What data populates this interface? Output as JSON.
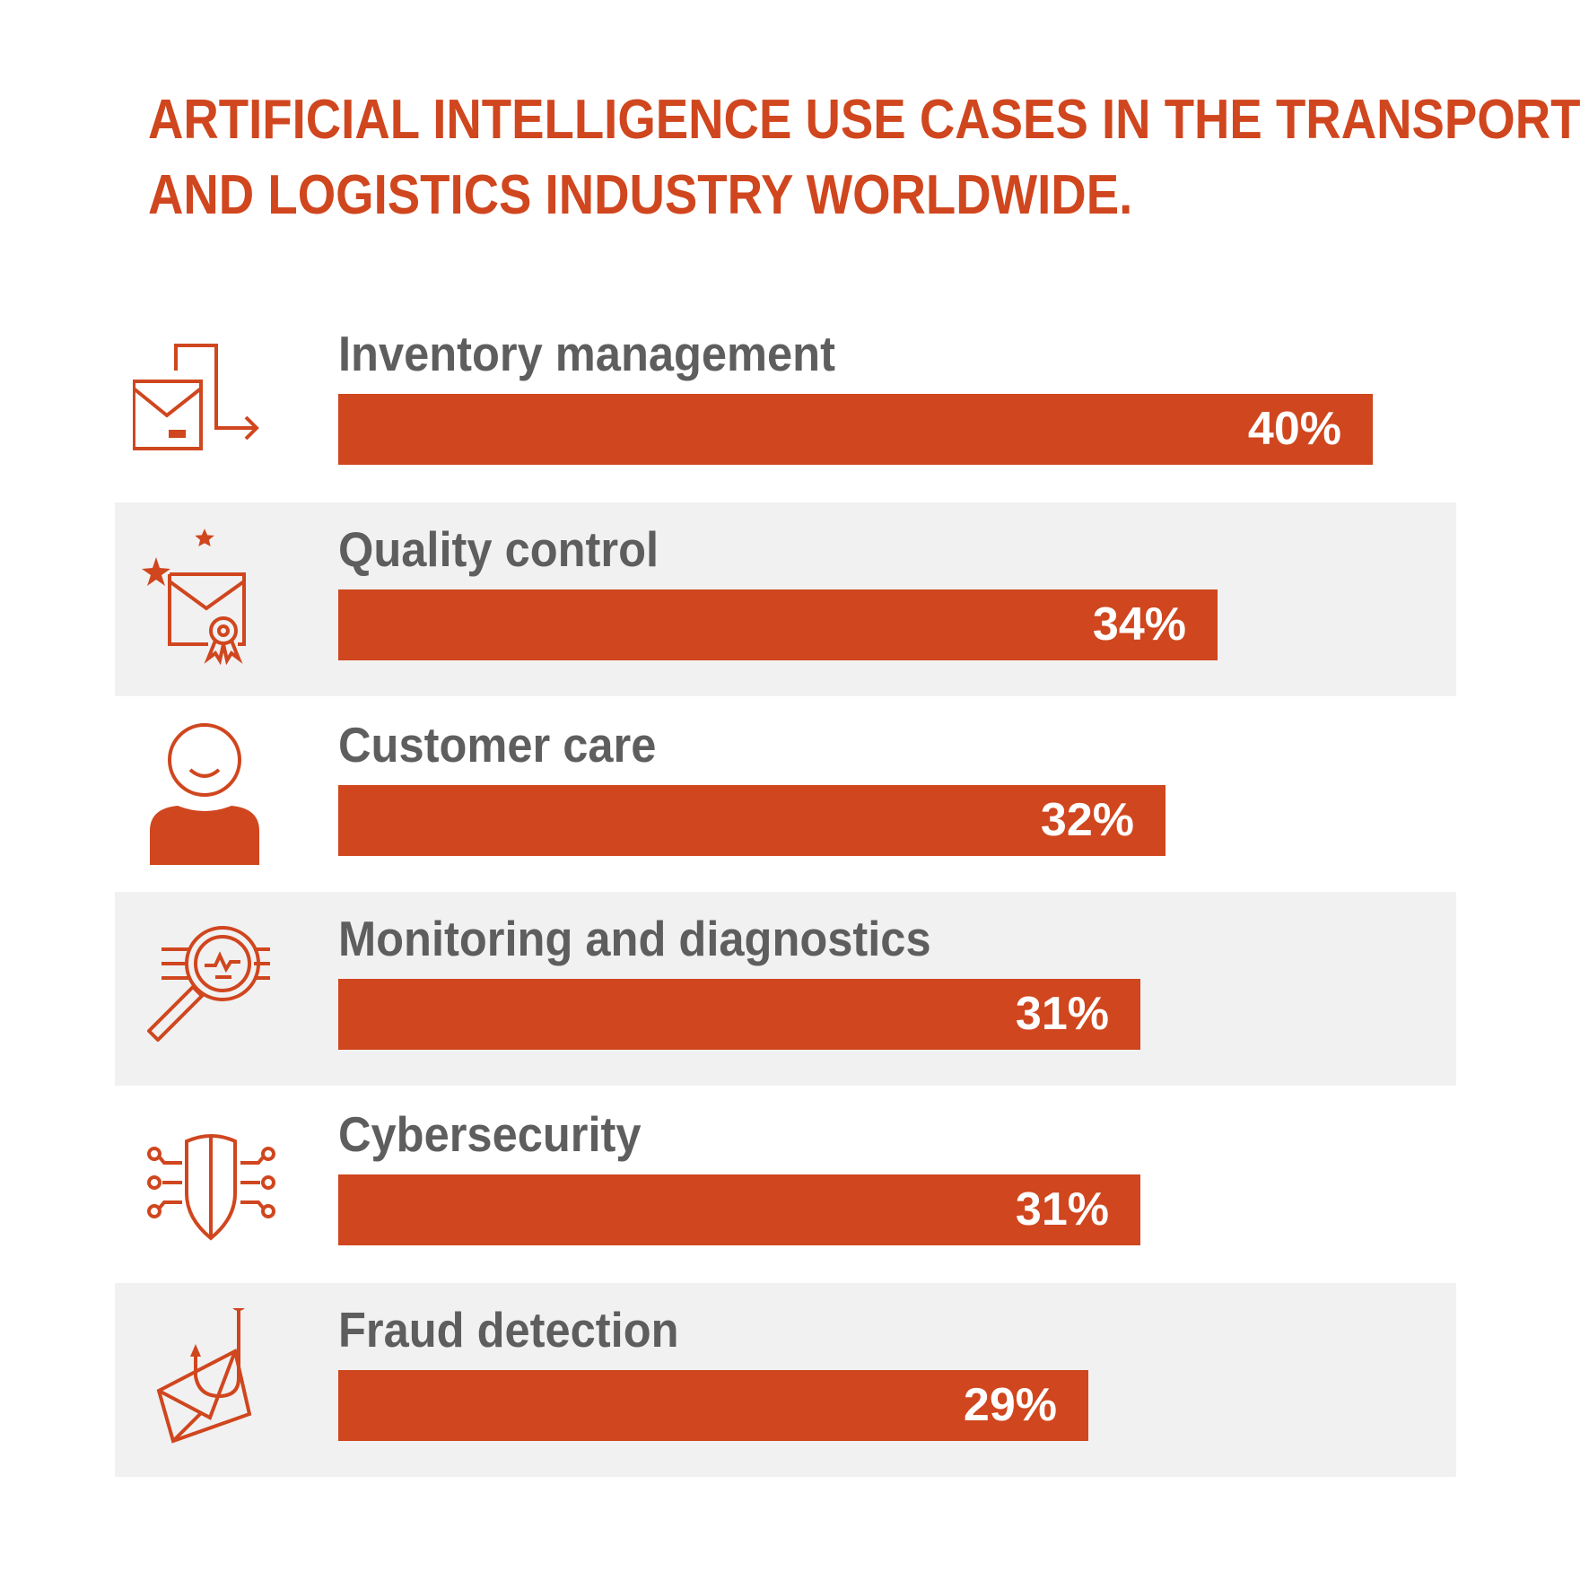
{
  "chart_data": {
    "type": "bar",
    "orientation": "horizontal",
    "title": "ARTIFICIAL INTELLIGENCE USE CASES IN THE TRANSPORT AND LOGISTICS INDUSTRY WORLDWIDE.",
    "title_lines": [
      "ARTIFICIAL INTELLIGENCE USE CASES IN THE TRANSPORT",
      "AND LOGISTICS INDUSTRY WORLDWIDE."
    ],
    "categories": [
      "Inventory management",
      "Quality control",
      "Customer care",
      "Monitoring and diagnostics",
      "Cybersecurity",
      "Fraud detection"
    ],
    "values": [
      40,
      34,
      32,
      31,
      31,
      29
    ],
    "value_labels": [
      "40%",
      "34%",
      "32%",
      "31%",
      "31%",
      "29%"
    ],
    "unit": "%",
    "xlim": [
      0,
      40
    ],
    "icons": [
      "box-transfer-icon",
      "certificate-stars-icon",
      "customer-person-icon",
      "magnifier-diagnostics-icon",
      "shield-circuit-icon",
      "phishing-envelope-icon"
    ],
    "grid": false,
    "legend": "none",
    "colors": {
      "accent": "#d0461e",
      "label_text": "#5e5e5e",
      "row_shade": "#f1f1f1",
      "value_text": "#ffffff"
    }
  }
}
